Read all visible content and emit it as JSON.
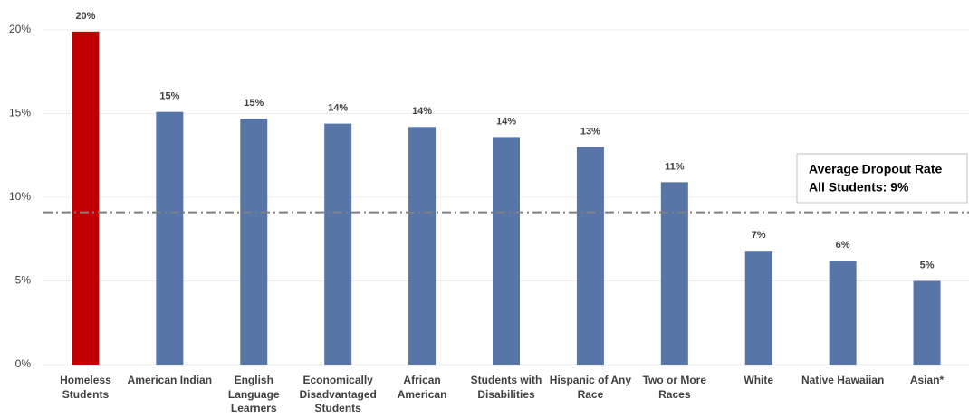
{
  "chart_data": {
    "type": "bar",
    "categories": [
      "Homeless Students",
      "American Indian",
      "English Language Learners",
      "Economically Disadvantaged Students",
      "African American",
      "Students with Disabilities",
      "Hispanic of Any Race",
      "Two or More Races",
      "White",
      "Native Hawaiian",
      "Asian*"
    ],
    "values": [
      19.9,
      15.1,
      14.7,
      14.4,
      14.2,
      13.6,
      13.0,
      10.9,
      6.8,
      6.2,
      5.0
    ],
    "value_labels": [
      "20%",
      "15%",
      "15%",
      "14%",
      "14%",
      "14%",
      "13%",
      "11%",
      "7%",
      "6%",
      "5%"
    ],
    "colors": [
      "#c00000",
      "#5875a8",
      "#5875a8",
      "#5875a8",
      "#5875a8",
      "#5875a8",
      "#5875a8",
      "#5875a8",
      "#5875a8",
      "#5875a8",
      "#5875a8"
    ],
    "ylim": [
      0,
      20
    ],
    "yticks": [
      {
        "value": 0,
        "label": "0%"
      },
      {
        "value": 5,
        "label": "5%"
      },
      {
        "value": 10,
        "label": "10%"
      },
      {
        "value": 15,
        "label": "15%"
      },
      {
        "value": 20,
        "label": "20%"
      }
    ],
    "grid": true,
    "reference_line": {
      "value": 9.1,
      "color": "#808080",
      "label": [
        "Average Dropout Rate",
        "All Students: 9%"
      ]
    }
  }
}
